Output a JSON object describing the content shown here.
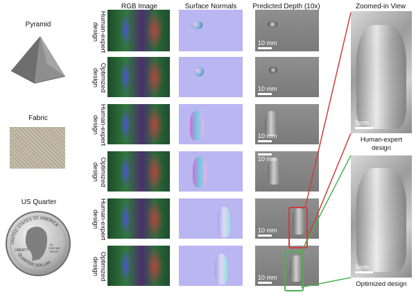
{
  "column_headers": {
    "rgb": "RGB Image",
    "normals": "Surface Normals",
    "depth": "Predicted Depth (10x)",
    "zoom": "Zoomed-in View"
  },
  "objects": [
    {
      "label": "Pyramid"
    },
    {
      "label": "Fabric"
    },
    {
      "label": "US Quarter"
    }
  ],
  "rows": [
    {
      "label_line1": "Human-expert",
      "label_line2": "design",
      "scale": "10 mm"
    },
    {
      "label_line1": "Optimized",
      "label_line2": "design",
      "scale": "10 mm"
    },
    {
      "label_line1": "Human-expert",
      "label_line2": "design",
      "scale": "10 mm"
    },
    {
      "label_line1": "Optimized",
      "label_line2": "design",
      "scale": "10 mm"
    },
    {
      "label_line1": "Human-expert",
      "label_line2": "design",
      "scale": "10 mm"
    },
    {
      "label_line1": "Optimized",
      "label_line2": "design",
      "scale": "10 mm"
    }
  ],
  "zoom_panels": [
    {
      "scale": "5mm",
      "caption_line1": "Human-expert",
      "caption_line2": "design"
    },
    {
      "scale": "5mm",
      "caption_line1": "Optimized design",
      "caption_line2": ""
    }
  ],
  "coin_text": {
    "top": "UNITED STATES OF AMERICA",
    "left": "LIBERTY",
    "bottom": "QUARTER DOLLAR",
    "motto_line1": "IN",
    "motto_line2": "GOD WE",
    "motto_line3": "TRUST"
  },
  "colors": {
    "human_expert_box": "#d23a3a",
    "optimized_box": "#4caf50",
    "normals_bg": "#b9b6f2"
  }
}
